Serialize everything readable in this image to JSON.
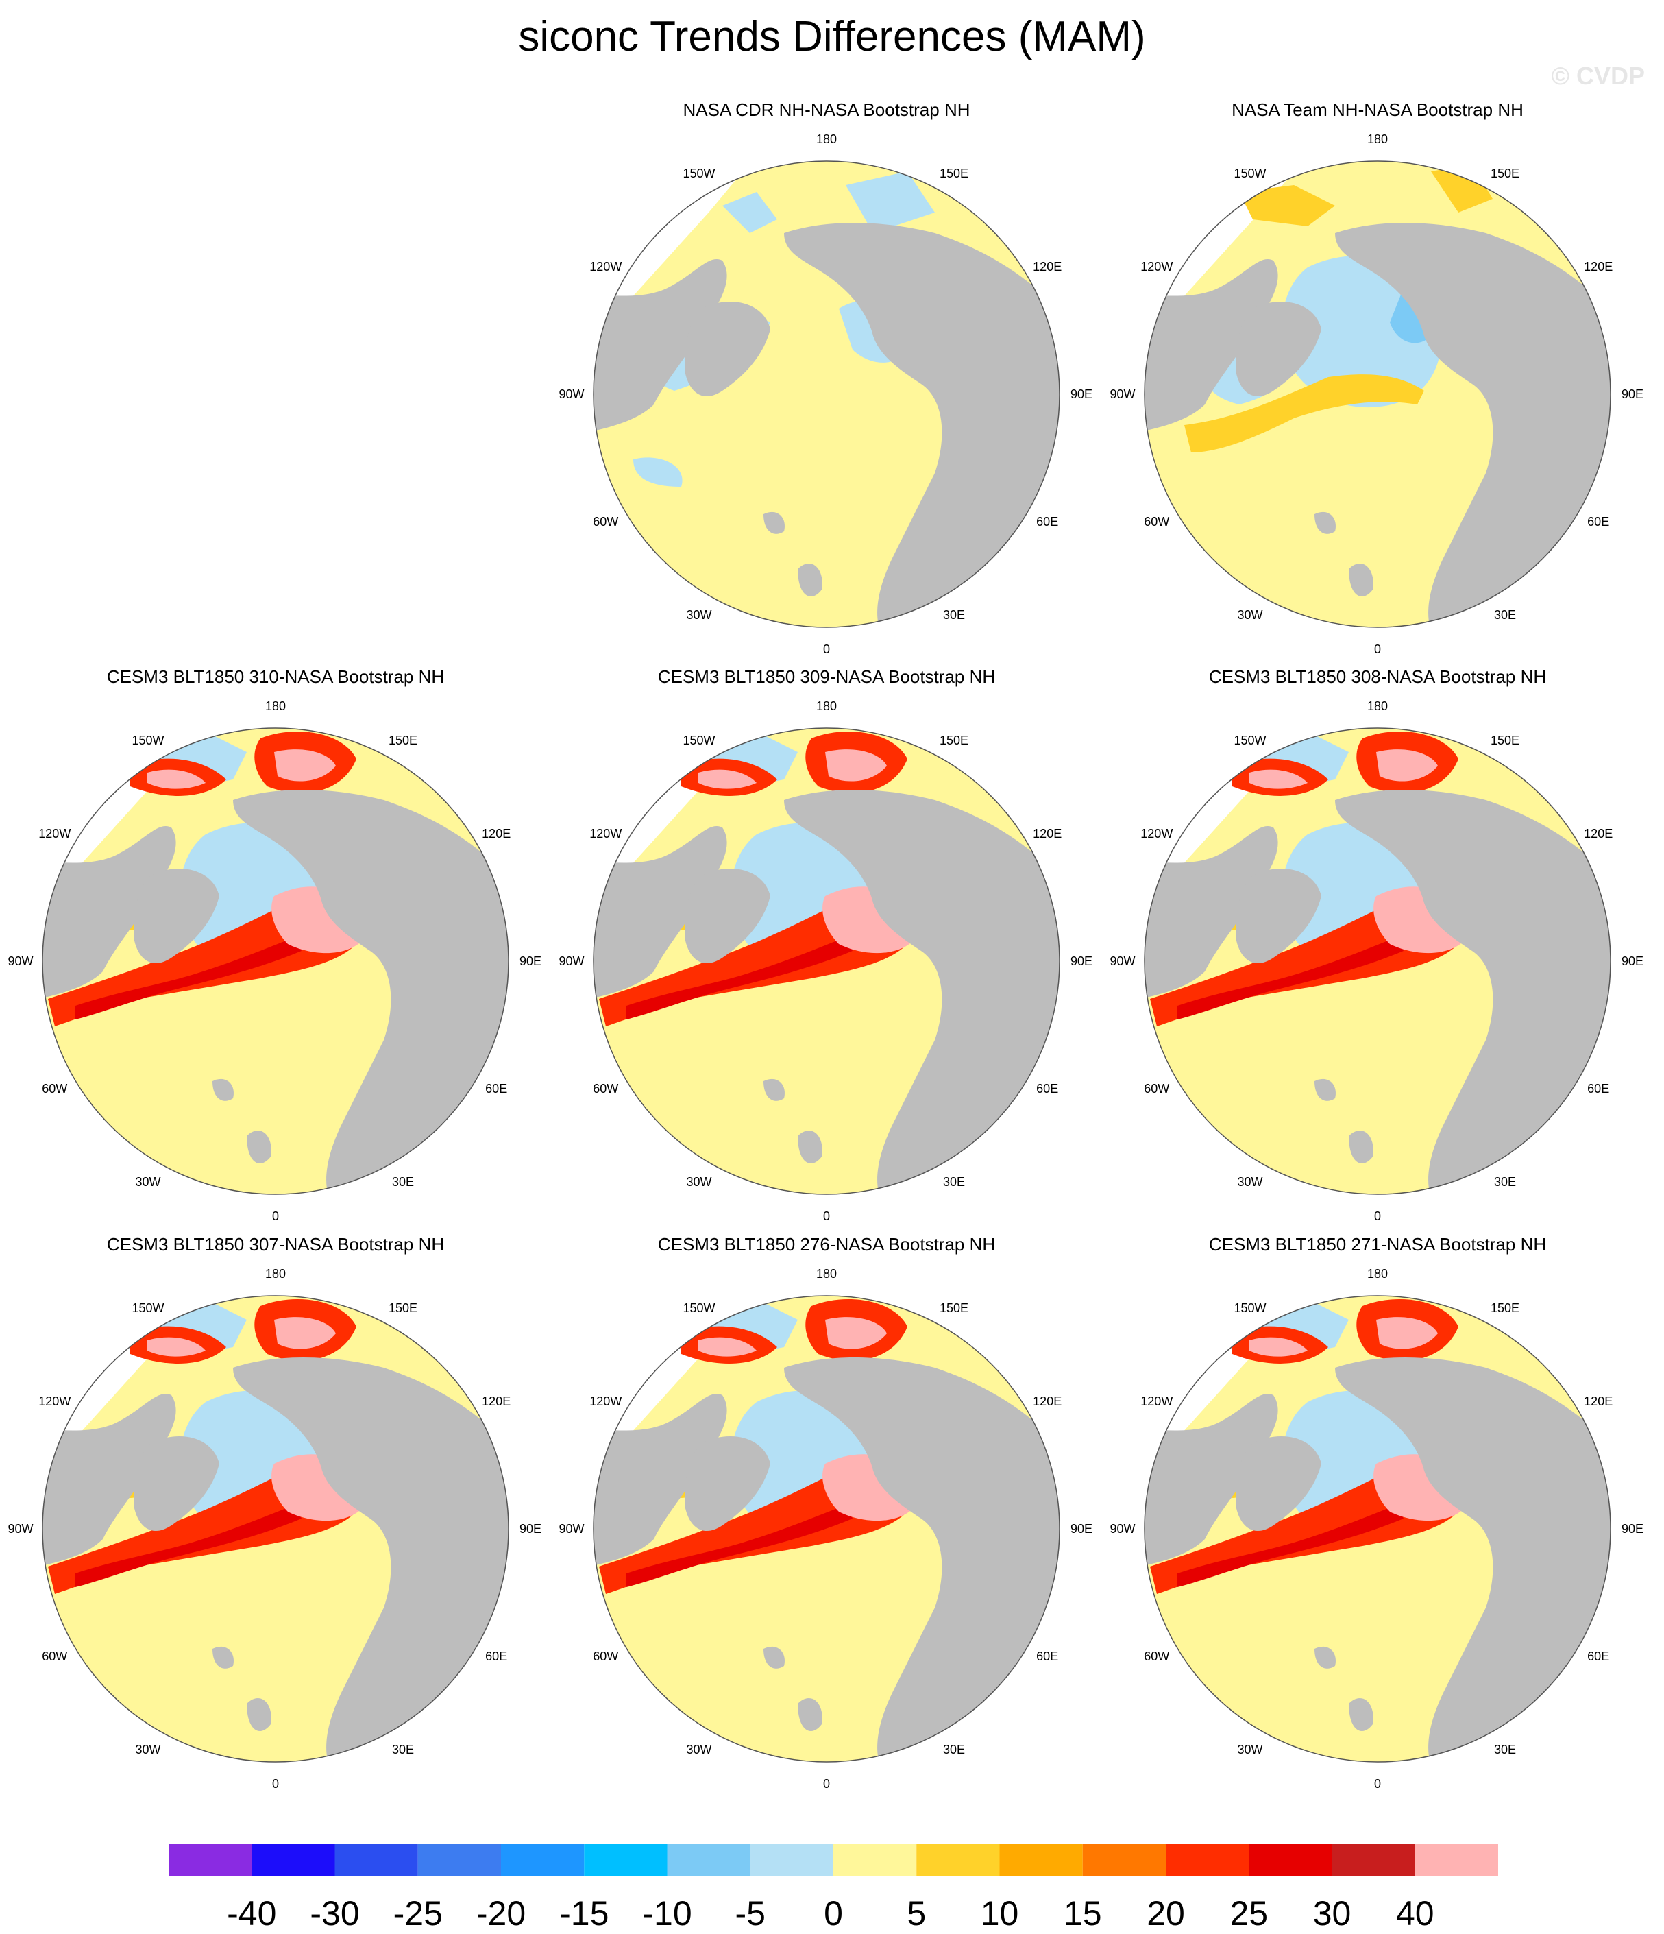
{
  "title": "siconc Trends Differences (MAM)",
  "watermark": "© CVDP",
  "meridian_labels": [
    "180",
    "150E",
    "120E",
    "90E",
    "60E",
    "30E",
    "0",
    "30W",
    "60W",
    "90W",
    "120W",
    "150W"
  ],
  "colors": {
    "land": "#bdbdbd",
    "ocean_missing": "#ffffff",
    "zero_band": "#fff79a"
  },
  "panels": [
    {
      "title": "NASA CDR NH-NASA Bootstrap NH",
      "variant": "obs1"
    },
    {
      "title": "NASA Team NH-NASA Bootstrap NH",
      "variant": "obs2"
    },
    {
      "title": "CESM3 BLT1850 310-NASA Bootstrap NH",
      "variant": "model"
    },
    {
      "title": "CESM3 BLT1850 309-NASA Bootstrap NH",
      "variant": "model"
    },
    {
      "title": "CESM3 BLT1850 308-NASA Bootstrap NH",
      "variant": "model"
    },
    {
      "title": "CESM3 BLT1850 307-NASA Bootstrap NH",
      "variant": "model"
    },
    {
      "title": "CESM3 BLT1850 276-NASA Bootstrap NH",
      "variant": "model"
    },
    {
      "title": "CESM3 BLT1850 271-NASA Bootstrap NH",
      "variant": "model"
    }
  ],
  "colorbar": {
    "colors": [
      "#8a2be2",
      "#1c0dfa",
      "#2b4ef0",
      "#3d7cf0",
      "#1e96ff",
      "#00bfff",
      "#7ccaf5",
      "#b4e0f5",
      "#fff79a",
      "#ffd22a",
      "#ffaa00",
      "#ff7800",
      "#ff2d00",
      "#e60000",
      "#c81e1e",
      "#ffb3b3"
    ],
    "labels": [
      "-40",
      "-30",
      "-25",
      "-20",
      "-15",
      "-10",
      "-5",
      "0",
      "5",
      "10",
      "15",
      "20",
      "25",
      "30",
      "40"
    ]
  }
}
